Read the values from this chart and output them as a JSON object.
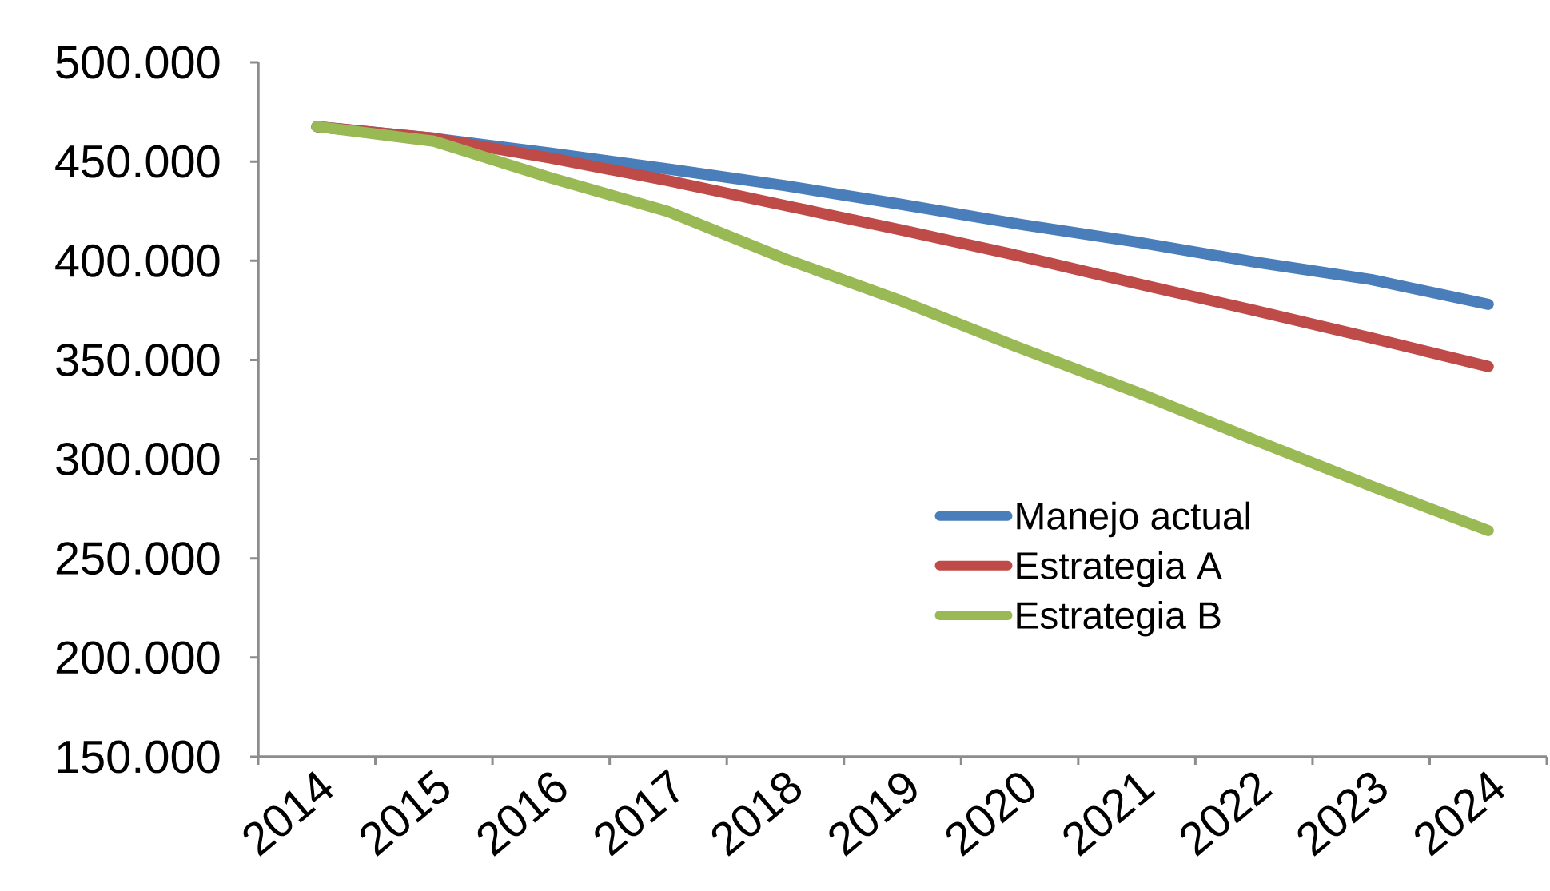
{
  "chart_data": {
    "type": "line",
    "categories": [
      "2014",
      "2015",
      "2016",
      "2017",
      "2018",
      "2019",
      "2020",
      "2021",
      "2022",
      "2023",
      "2024"
    ],
    "series": [
      {
        "name": "Manejo actual",
        "color": "#4a7ebb",
        "values": [
          467600,
          461700,
          454200,
          446200,
          437800,
          428300,
          418400,
          409400,
          399400,
          390500,
          378000
        ]
      },
      {
        "name": "Estrategia A",
        "color": "#be4b48",
        "values": [
          467600,
          461700,
          451700,
          440300,
          427800,
          415400,
          402400,
          388500,
          375000,
          361100,
          346700
        ]
      },
      {
        "name": "Estrategia B",
        "color": "#98b954",
        "values": [
          467600,
          460200,
          441700,
          424800,
          400900,
          379500,
          356100,
          333700,
          309800,
          286400,
          264000
        ]
      }
    ],
    "ylim": [
      150000,
      500000
    ],
    "yticks": [
      {
        "value": 150000,
        "label": "150.000"
      },
      {
        "value": 200000,
        "label": "200.000"
      },
      {
        "value": 250000,
        "label": "250.000"
      },
      {
        "value": 300000,
        "label": "300.000"
      },
      {
        "value": 350000,
        "label": "350.000"
      },
      {
        "value": 400000,
        "label": "400.000"
      },
      {
        "value": 450000,
        "label": "450.000"
      },
      {
        "value": 500000,
        "label": "500.000"
      }
    ],
    "grid": false,
    "legend": "bottom right",
    "marker": "none",
    "line_style": "solid"
  }
}
